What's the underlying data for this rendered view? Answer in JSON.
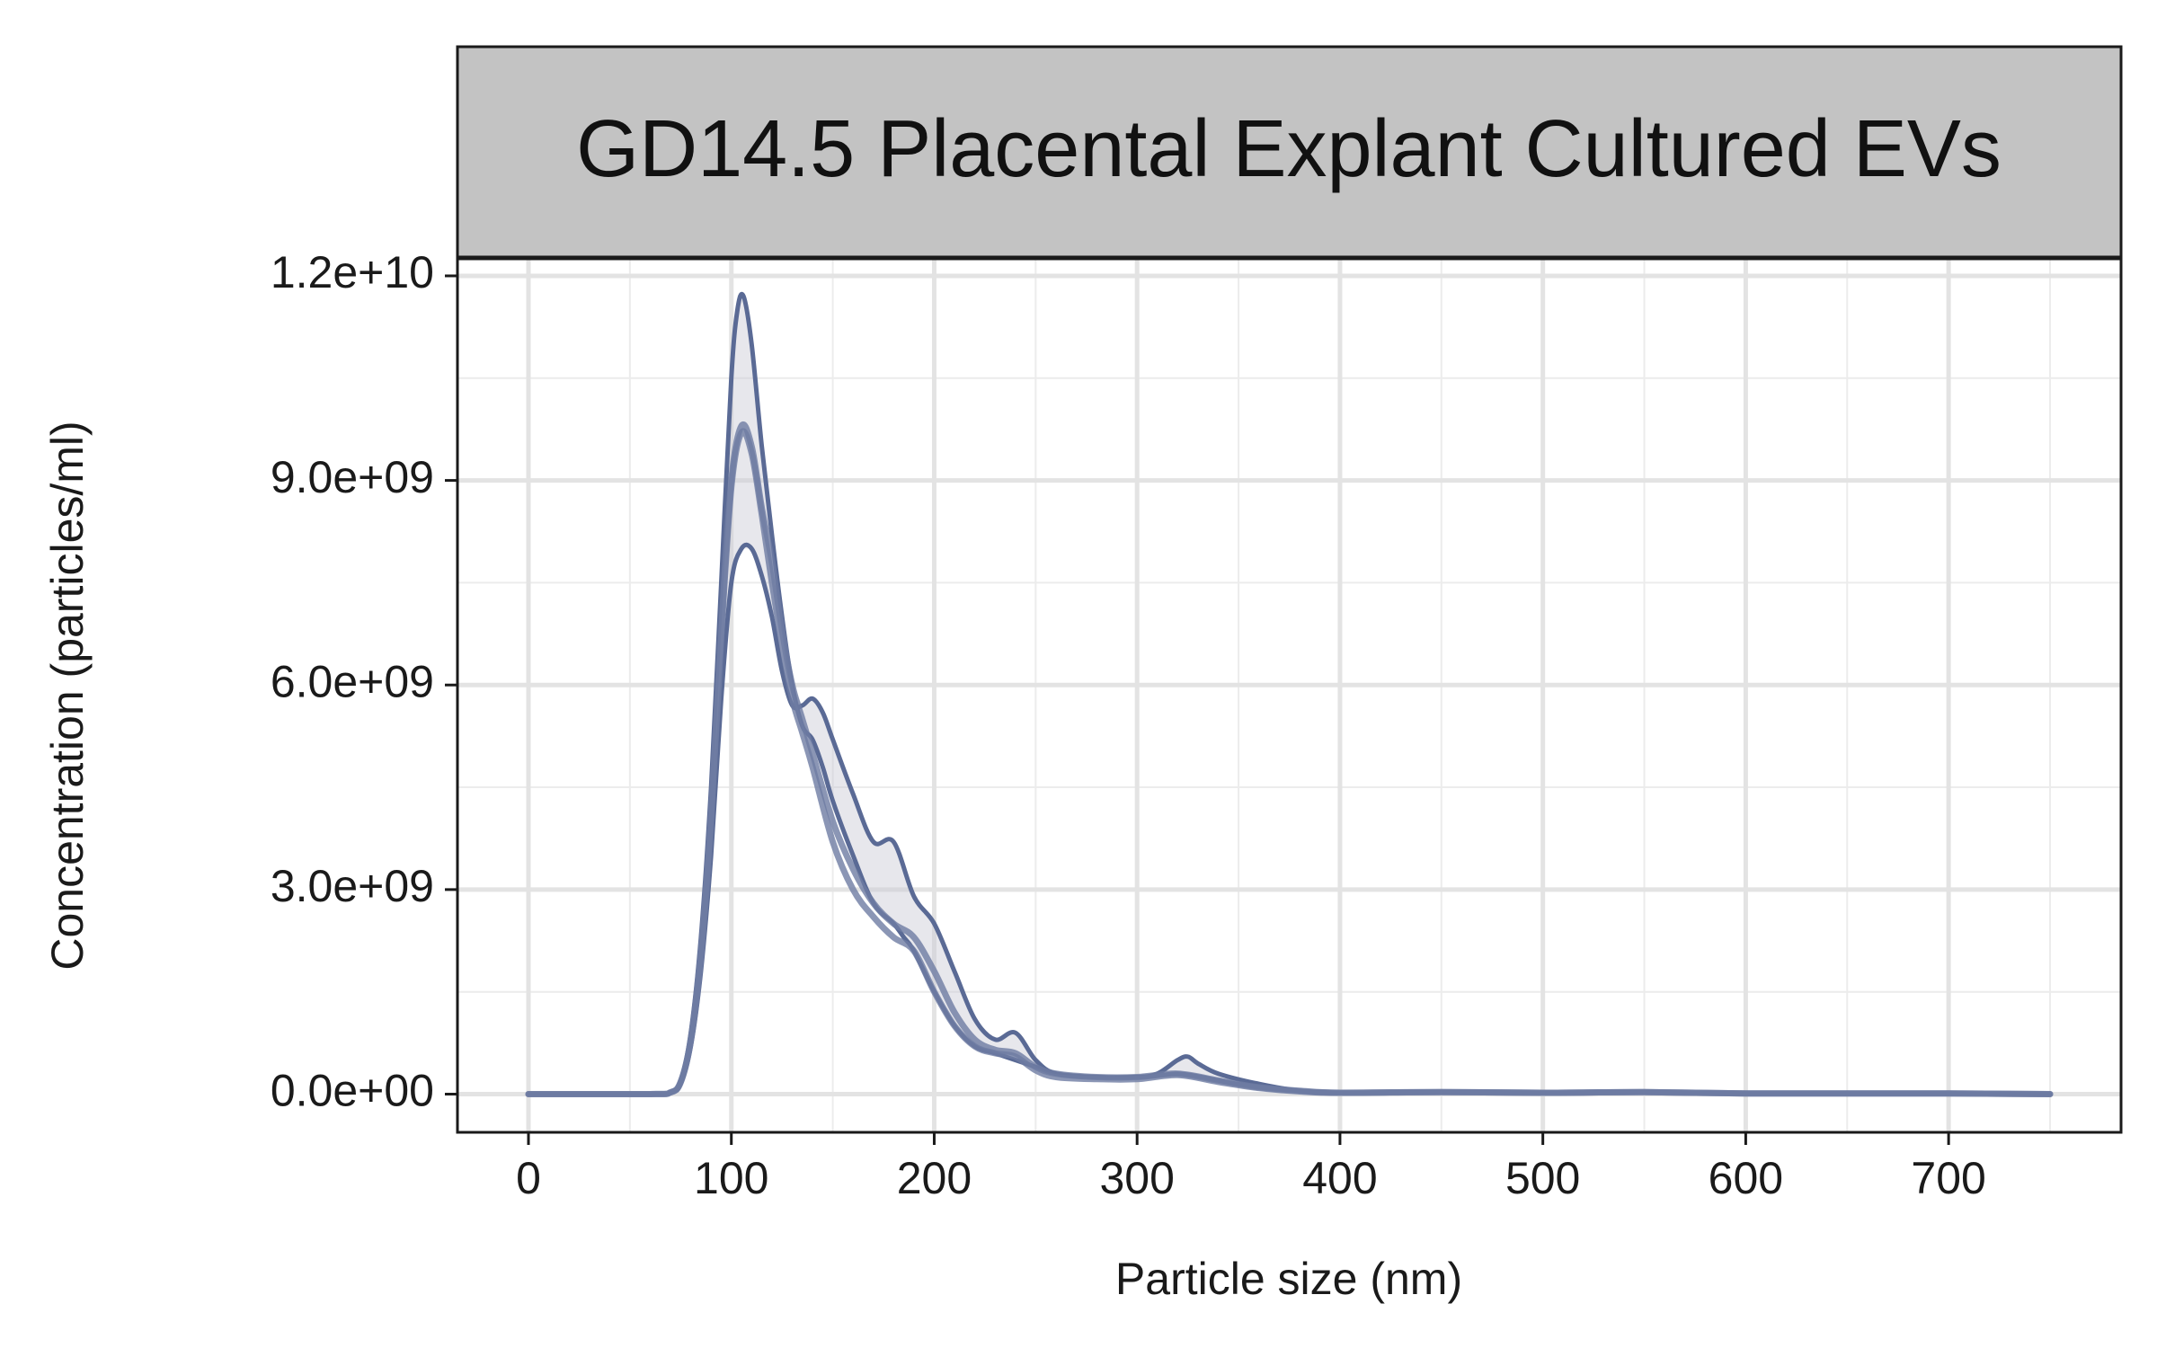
{
  "chart_data": {
    "type": "line",
    "title": "GD14.5 Placental Explant Cultured EVs",
    "xlabel": "Particle size (nm)",
    "ylabel": "Concentration (particles/ml)",
    "xlim": [
      -35,
      785
    ],
    "ylim": [
      -560000000,
      12250000000
    ],
    "x_ticks": [
      0,
      100,
      200,
      300,
      400,
      500,
      600,
      700
    ],
    "x_tick_labels": [
      "0",
      "100",
      "200",
      "300",
      "400",
      "500",
      "600",
      "700"
    ],
    "y_ticks": [
      0,
      3000000000,
      6000000000,
      9000000000,
      12000000000
    ],
    "y_tick_labels": [
      "0.0e+00",
      "3.0e+09",
      "6.0e+09",
      "9.0e+09",
      "1.2e+10"
    ],
    "grid": true,
    "legend": "none",
    "colors": {
      "line": "#5a6a95",
      "mean_line": "#6e7ca3",
      "ribbon": "#c9c9d4",
      "strip": "#c3c3c3"
    },
    "series": [
      {
        "x": [
          0,
          60,
          70,
          75,
          80,
          85,
          90,
          95,
          100,
          103,
          106,
          110,
          115,
          120,
          125,
          130,
          135,
          140,
          145,
          150,
          160,
          170,
          180,
          185,
          190,
          200,
          210,
          220,
          230,
          240,
          250,
          260,
          280,
          300,
          310,
          320,
          330,
          340,
          360,
          380,
          400,
          450,
          500,
          550,
          600,
          650,
          700,
          750
        ],
        "values": [
          0,
          0,
          30000000,
          200000000,
          900000000,
          2300000000,
          4500000000,
          7500000000,
          10500000000,
          11500000000,
          11700000000,
          11000000000,
          9500000000,
          8200000000,
          7000000000,
          6000000000,
          5400000000,
          5200000000,
          4800000000,
          4300000000,
          3500000000,
          2800000000,
          2500000000,
          2300000000,
          2100000000,
          1500000000,
          1000000000,
          700000000,
          600000000,
          500000000,
          400000000,
          300000000,
          250000000,
          250000000,
          270000000,
          300000000,
          260000000,
          200000000,
          100000000,
          50000000,
          20000000,
          30000000,
          20000000,
          30000000,
          10000000,
          10000000,
          10000000,
          0
        ]
      },
      {
        "x": [
          0,
          60,
          70,
          75,
          80,
          85,
          90,
          95,
          100,
          105,
          110,
          115,
          120,
          125,
          130,
          135,
          140,
          145,
          150,
          160,
          170,
          180,
          190,
          200,
          210,
          220,
          230,
          240,
          250,
          260,
          280,
          300,
          310,
          320,
          325,
          330,
          340,
          360,
          380,
          400,
          450,
          500,
          550,
          600,
          650,
          700,
          750
        ],
        "values": [
          0,
          0,
          20000000,
          150000000,
          700000000,
          1800000000,
          3500000000,
          5800000000,
          7500000000,
          8000000000,
          8000000000,
          7600000000,
          7000000000,
          6200000000,
          5700000000,
          5700000000,
          5800000000,
          5600000000,
          5200000000,
          4400000000,
          3700000000,
          3700000000,
          2900000000,
          2500000000,
          1800000000,
          1100000000,
          800000000,
          900000000,
          500000000,
          300000000,
          250000000,
          250000000,
          300000000,
          500000000,
          550000000,
          450000000,
          300000000,
          150000000,
          50000000,
          20000000,
          30000000,
          20000000,
          30000000,
          10000000,
          10000000,
          10000000,
          0
        ]
      },
      {
        "x": [
          0,
          60,
          70,
          75,
          80,
          85,
          90,
          95,
          100,
          105,
          110,
          115,
          120,
          125,
          130,
          135,
          140,
          150,
          160,
          170,
          180,
          190,
          200,
          210,
          220,
          230,
          240,
          250,
          260,
          280,
          300,
          320,
          340,
          360,
          380,
          400,
          450,
          500,
          550,
          600,
          650,
          700,
          750
        ],
        "values": [
          0,
          0,
          25000000,
          180000000,
          800000000,
          2100000000,
          4100000000,
          6800000000,
          9000000000,
          9800000000,
          9500000000,
          8600000000,
          7800000000,
          6800000000,
          6000000000,
          5500000000,
          5000000000,
          4000000000,
          3300000000,
          2800000000,
          2500000000,
          2300000000,
          1800000000,
          1200000000,
          800000000,
          650000000,
          600000000,
          400000000,
          300000000,
          250000000,
          250000000,
          300000000,
          200000000,
          100000000,
          50000000,
          20000000,
          30000000,
          20000000,
          30000000,
          10000000,
          10000000,
          10000000,
          0
        ]
      },
      {
        "x": [
          0,
          60,
          70,
          75,
          80,
          85,
          90,
          95,
          100,
          105,
          110,
          115,
          120,
          125,
          130,
          135,
          140,
          150,
          160,
          170,
          180,
          190,
          200,
          210,
          220,
          230,
          240,
          250,
          260,
          280,
          300,
          320,
          340,
          360,
          380,
          400,
          450,
          500,
          550,
          600,
          650,
          700,
          750
        ],
        "values": [
          0,
          0,
          25000000,
          170000000,
          780000000,
          2000000000,
          4000000000,
          6700000000,
          8900000000,
          9700000000,
          9400000000,
          8500000000,
          7500000000,
          6600000000,
          5800000000,
          5300000000,
          4800000000,
          3700000000,
          3000000000,
          2600000000,
          2300000000,
          2100000000,
          1500000000,
          1000000000,
          700000000,
          600000000,
          550000000,
          350000000,
          250000000,
          220000000,
          220000000,
          280000000,
          180000000,
          90000000,
          40000000,
          20000000,
          30000000,
          20000000,
          30000000,
          10000000,
          10000000,
          10000000,
          0
        ]
      }
    ]
  }
}
